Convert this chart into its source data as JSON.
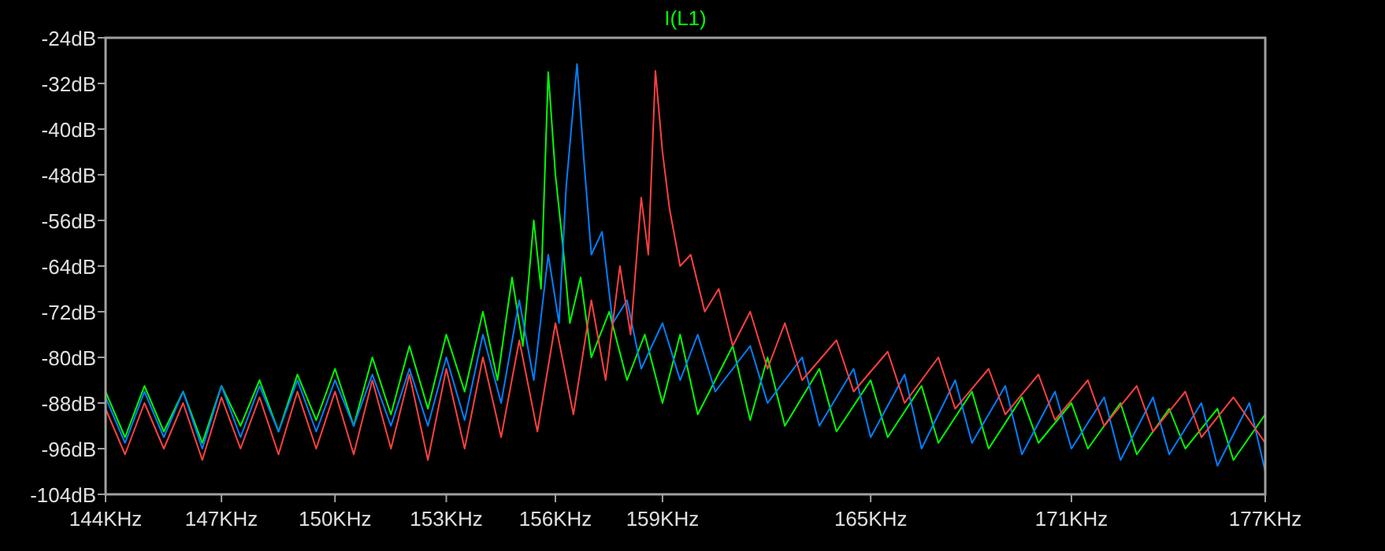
{
  "chart_data": {
    "type": "line",
    "log": "x",
    "legend": "top",
    "grid": false,
    "xlim": [
      144,
      177
    ],
    "ylim": [
      -104,
      -24
    ],
    "xticks": [
      {
        "value": 144,
        "label": "144KHz"
      },
      {
        "value": 147,
        "label": "147KHz"
      },
      {
        "value": 150,
        "label": "150KHz"
      },
      {
        "value": 153,
        "label": "153KHz"
      },
      {
        "value": 156,
        "label": "156KHz"
      },
      {
        "value": 159,
        "label": "159KHz"
      },
      {
        "value": 165,
        "label": "165KHz"
      },
      {
        "value": 171,
        "label": "171KHz"
      },
      {
        "value": 177,
        "label": "177KHz"
      }
    ],
    "yticks": [
      {
        "value": -24,
        "label": "-24dB"
      },
      {
        "value": -32,
        "label": "-32dB"
      },
      {
        "value": -40,
        "label": "-40dB"
      },
      {
        "value": -48,
        "label": "-48dB"
      },
      {
        "value": -56,
        "label": "-56dB"
      },
      {
        "value": -64,
        "label": "-64dB"
      },
      {
        "value": -72,
        "label": "-72dB"
      },
      {
        "value": -80,
        "label": "-80dB"
      },
      {
        "value": -88,
        "label": "-88dB"
      },
      {
        "value": -96,
        "label": "-96dB"
      },
      {
        "value": -104,
        "label": "-104dB"
      }
    ],
    "series": [
      {
        "name": "I(L1)",
        "color": "#00ff00",
        "x": [
          144,
          144.5,
          145,
          145.5,
          146,
          146.5,
          147,
          147.5,
          148,
          148.5,
          149,
          149.5,
          150,
          150.5,
          151,
          151.5,
          152,
          152.5,
          153,
          153.5,
          154,
          154.4,
          154.8,
          155.1,
          155.4,
          155.6,
          155.8,
          156,
          156.2,
          156.4,
          156.7,
          157,
          157.5,
          158,
          158.5,
          159,
          159.5,
          160,
          161,
          161.5,
          162,
          162.5,
          163.5,
          164,
          165,
          165.5,
          166.5,
          167,
          168,
          168.5,
          169.5,
          170,
          171,
          171.5,
          172.5,
          173,
          174,
          174.5,
          175.5,
          176,
          177
        ],
        "values": [
          -86,
          -94,
          -85,
          -93,
          -86,
          -95,
          -85,
          -92,
          -84,
          -93,
          -83,
          -91,
          -82,
          -92,
          -80,
          -90,
          -78,
          -89,
          -76,
          -86,
          -72,
          -84,
          -66,
          -78,
          -56,
          -68,
          -30,
          -48,
          -60,
          -74,
          -66,
          -80,
          -72,
          -84,
          -76,
          -88,
          -76,
          -90,
          -78,
          -91,
          -80,
          -92,
          -82,
          -93,
          -84,
          -94,
          -85,
          -95,
          -86,
          -96,
          -87,
          -95,
          -88,
          -96,
          -88,
          -97,
          -89,
          -96,
          -89,
          -98,
          -90
        ]
      },
      {
        "color": "#0080ff",
        "x": [
          144,
          144.5,
          145,
          145.5,
          146,
          146.5,
          147,
          147.5,
          148,
          148.5,
          149,
          149.5,
          150,
          150.5,
          151,
          151.5,
          152,
          152.5,
          153,
          153.5,
          154,
          154.5,
          155,
          155.4,
          155.8,
          156.1,
          156.3,
          156.6,
          156.8,
          157,
          157.3,
          157.6,
          158,
          158.4,
          159,
          159.5,
          160,
          160.5,
          161.5,
          162,
          163,
          163.5,
          164.5,
          165,
          166,
          166.5,
          167.5,
          168,
          169,
          169.5,
          170.5,
          171,
          172,
          172.5,
          173.5,
          174,
          175,
          175.5,
          176.5,
          177
        ],
        "values": [
          -87,
          -95,
          -86,
          -94,
          -86,
          -96,
          -85,
          -94,
          -85,
          -93,
          -84,
          -93,
          -84,
          -92,
          -83,
          -92,
          -82,
          -92,
          -80,
          -91,
          -76,
          -88,
          -70,
          -84,
          -62,
          -74,
          -50,
          -28.6,
          -46,
          -62,
          -58,
          -74,
          -70,
          -82,
          -74,
          -84,
          -76,
          -86,
          -78,
          -88,
          -80,
          -92,
          -82,
          -94,
          -83,
          -96,
          -84,
          -95,
          -85,
          -97,
          -86,
          -96,
          -87,
          -98,
          -87,
          -97,
          -88,
          -99,
          -88,
          -100
        ]
      },
      {
        "color": "#ff4040",
        "x": [
          144,
          144.5,
          145,
          145.5,
          146,
          146.5,
          147,
          147.5,
          148,
          148.5,
          149,
          149.5,
          150,
          150.5,
          151,
          151.5,
          152,
          152.5,
          153,
          153.5,
          154,
          154.5,
          155,
          155.5,
          156,
          156.5,
          157,
          157.4,
          157.8,
          158.1,
          158.4,
          158.6,
          158.8,
          159,
          159.2,
          159.5,
          159.8,
          160.2,
          160.6,
          161,
          161.5,
          162,
          162.5,
          163,
          164,
          164.5,
          165.5,
          166,
          167,
          167.5,
          168.5,
          169,
          170,
          170.5,
          171.5,
          172,
          173,
          173.5,
          174.5,
          175,
          176,
          177
        ],
        "values": [
          -89,
          -97,
          -88,
          -96,
          -88,
          -98,
          -87,
          -96,
          -87,
          -97,
          -86,
          -96,
          -86,
          -97,
          -84,
          -96,
          -83,
          -98,
          -82,
          -96,
          -80,
          -94,
          -77,
          -93,
          -74,
          -90,
          -70,
          -84,
          -64,
          -76,
          -52,
          -62,
          -29.8,
          -44,
          -54,
          -64,
          -62,
          -72,
          -68,
          -78,
          -72,
          -82,
          -74,
          -84,
          -77,
          -86,
          -79,
          -88,
          -80,
          -89,
          -82,
          -90,
          -83,
          -91,
          -84,
          -92,
          -85,
          -93,
          -86,
          -94,
          -87,
          -95
        ]
      }
    ]
  }
}
